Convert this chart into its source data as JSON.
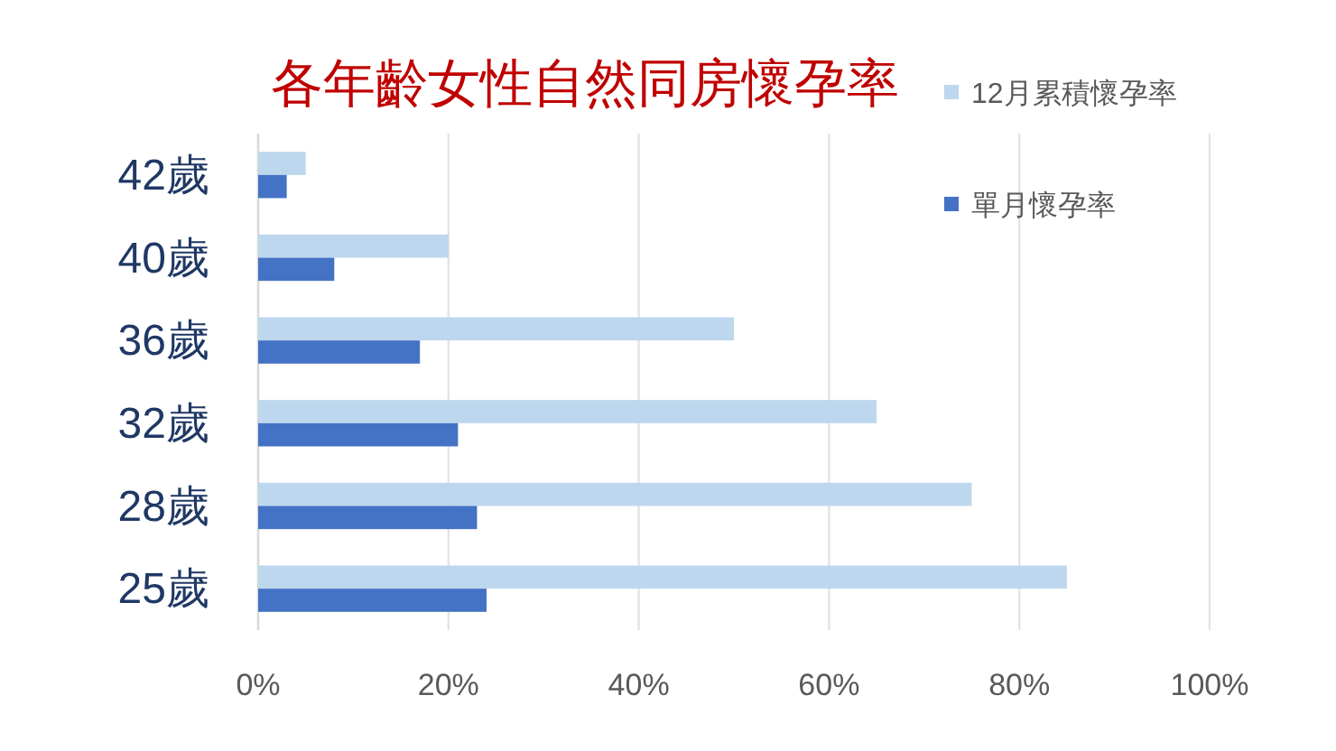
{
  "chart_data": {
    "type": "bar",
    "orientation": "horizontal",
    "title": "各年齡女性自然同房懷孕率",
    "categories": [
      "42歲",
      "40歲",
      "36歲",
      "32歲",
      "28歲",
      "25歲"
    ],
    "series": [
      {
        "name": "12月累積懷孕率",
        "color": "#bdd7ee",
        "values": [
          5,
          20,
          50,
          65,
          75,
          85
        ]
      },
      {
        "name": "單月懷孕率",
        "color": "#4472c4",
        "values": [
          3,
          8,
          17,
          21,
          23,
          24
        ]
      }
    ],
    "xlim": [
      0,
      100
    ],
    "xticks": [
      {
        "value": 0,
        "label": "0%"
      },
      {
        "value": 20,
        "label": "20%"
      },
      {
        "value": 40,
        "label": "40%"
      },
      {
        "value": 60,
        "label": "60%"
      },
      {
        "value": 80,
        "label": "80%"
      },
      {
        "value": 100,
        "label": "100%"
      }
    ],
    "grid": "x",
    "legend": "top right"
  }
}
